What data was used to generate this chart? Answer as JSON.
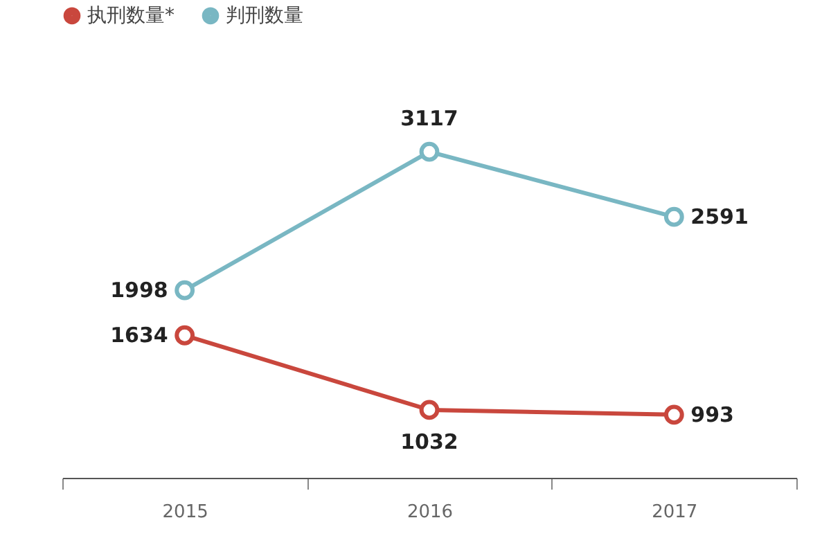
{
  "chart_data": {
    "type": "line",
    "categories": [
      "2015",
      "2016",
      "2017"
    ],
    "series": [
      {
        "name": "执刑数量*",
        "color": "#c9473d",
        "values": [
          1634,
          1032,
          993
        ]
      },
      {
        "name": "判刑数量",
        "color": "#79b7c3",
        "values": [
          1998,
          3117,
          2591
        ]
      }
    ],
    "data_labels": true,
    "legend": "top",
    "grid": false,
    "marker": "circle",
    "line_style": "solid"
  }
}
